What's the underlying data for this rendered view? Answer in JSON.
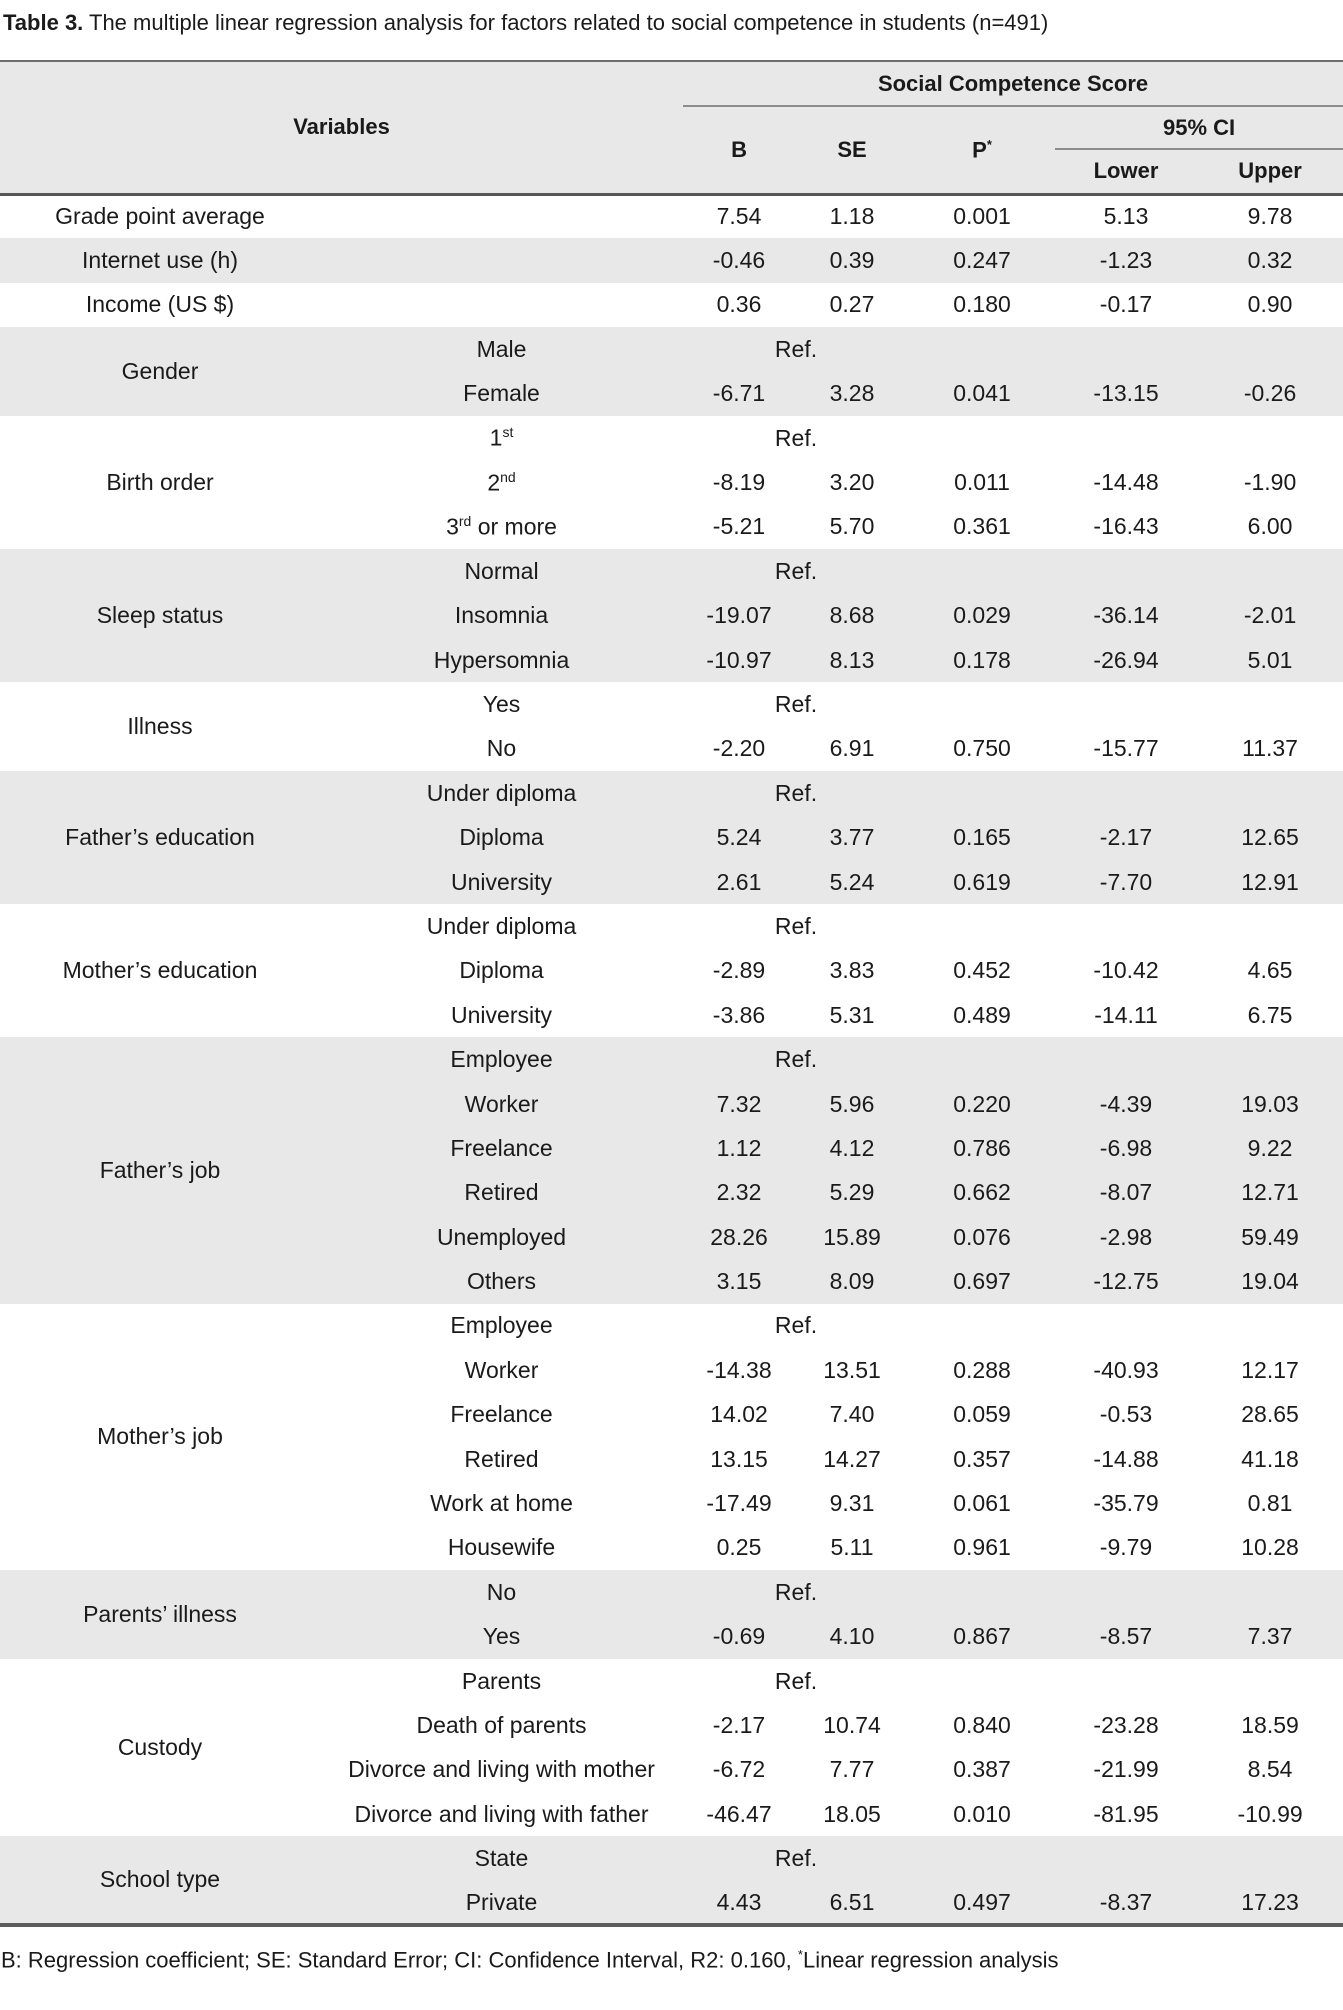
{
  "page": {
    "title_label": "Table 3.",
    "title_text": " The multiple linear regression analysis for factors related to social competence in students (n=491)",
    "footnote_text": "B: Regression coefficient; SE: Standard Error; CI: Confidence Interval, R2: 0.160, ",
    "footnote_sup": "*",
    "footnote_text2": "Linear regression analysis"
  },
  "table": {
    "colors": {
      "shaded_row": "#e8e8e8",
      "border_dark": "#565656",
      "border_light": "#8c8c8c"
    },
    "header": {
      "variables": "Variables",
      "score_group": "Social Competence Score",
      "b": "B",
      "se": "SE",
      "p": "P",
      "p_sup": "*",
      "ci": "95% CI",
      "lower": "Lower",
      "upper": "Upper"
    },
    "ref_label": "Ref.",
    "groups": [
      {
        "variable": "Grade point average",
        "shaded": false,
        "rows": [
          {
            "category": "",
            "b": "7.54",
            "se": "1.18",
            "p": "0.001",
            "lower": "5.13",
            "upper": "9.78"
          }
        ]
      },
      {
        "variable": "Internet use (h)",
        "shaded": true,
        "rows": [
          {
            "category": "",
            "b": "-0.46",
            "se": "0.39",
            "p": "0.247",
            "lower": "-1.23",
            "upper": "0.32"
          }
        ]
      },
      {
        "variable": "Income (US $)",
        "shaded": false,
        "rows": [
          {
            "category": "",
            "b": "0.36",
            "se": "0.27",
            "p": "0.180",
            "lower": "-0.17",
            "upper": "0.90"
          }
        ]
      },
      {
        "variable": "Gender",
        "shaded": true,
        "rows": [
          {
            "category": "Male",
            "ref": true
          },
          {
            "category": "Female",
            "b": "-6.71",
            "se": "3.28",
            "p": "0.041",
            "lower": "-13.15",
            "upper": "-0.26"
          }
        ]
      },
      {
        "variable": "Birth order",
        "shaded": false,
        "rows": [
          {
            "category": {
              "pre": "1",
              "sup": "st",
              "post": ""
            },
            "ref": true
          },
          {
            "category": {
              "pre": "2",
              "sup": "nd",
              "post": ""
            },
            "b": "-8.19",
            "se": "3.20",
            "p": "0.011",
            "lower": "-14.48",
            "upper": "-1.90"
          },
          {
            "category": {
              "pre": "3",
              "sup": "rd",
              "post": " or more"
            },
            "b": "-5.21",
            "se": "5.70",
            "p": "0.361",
            "lower": "-16.43",
            "upper": "6.00"
          }
        ]
      },
      {
        "variable": "Sleep status",
        "shaded": true,
        "rows": [
          {
            "category": "Normal",
            "ref": true
          },
          {
            "category": "Insomnia",
            "b": "-19.07",
            "se": "8.68",
            "p": "0.029",
            "lower": "-36.14",
            "upper": "-2.01"
          },
          {
            "category": "Hypersomnia",
            "b": "-10.97",
            "se": "8.13",
            "p": "0.178",
            "lower": "-26.94",
            "upper": "5.01"
          }
        ]
      },
      {
        "variable": "Illness",
        "shaded": false,
        "rows": [
          {
            "category": "Yes",
            "ref": true
          },
          {
            "category": "No",
            "b": "-2.20",
            "se": "6.91",
            "p": "0.750",
            "lower": "-15.77",
            "upper": "11.37"
          }
        ]
      },
      {
        "variable": "Father’s education",
        "shaded": true,
        "rows": [
          {
            "category": "Under diploma",
            "ref": true
          },
          {
            "category": "Diploma",
            "b": "5.24",
            "se": "3.77",
            "p": "0.165",
            "lower": "-2.17",
            "upper": "12.65"
          },
          {
            "category": "University",
            "b": "2.61",
            "se": "5.24",
            "p": "0.619",
            "lower": "-7.70",
            "upper": "12.91"
          }
        ]
      },
      {
        "variable": "Mother’s education",
        "shaded": false,
        "rows": [
          {
            "category": "Under diploma",
            "ref": true
          },
          {
            "category": "Diploma",
            "b": "-2.89",
            "se": "3.83",
            "p": "0.452",
            "lower": "-10.42",
            "upper": "4.65"
          },
          {
            "category": "University",
            "b": "-3.86",
            "se": "5.31",
            "p": "0.489",
            "lower": "-14.11",
            "upper": "6.75"
          }
        ]
      },
      {
        "variable": "Father’s job",
        "shaded": true,
        "rows": [
          {
            "category": "Employee",
            "ref": true
          },
          {
            "category": "Worker",
            "b": "7.32",
            "se": "5.96",
            "p": "0.220",
            "lower": "-4.39",
            "upper": "19.03"
          },
          {
            "category": "Freelance",
            "b": "1.12",
            "se": "4.12",
            "p": "0.786",
            "lower": "-6.98",
            "upper": "9.22"
          },
          {
            "category": "Retired",
            "b": "2.32",
            "se": "5.29",
            "p": "0.662",
            "lower": "-8.07",
            "upper": "12.71"
          },
          {
            "category": "Unemployed",
            "b": "28.26",
            "se": "15.89",
            "p": "0.076",
            "lower": "-2.98",
            "upper": "59.49"
          },
          {
            "category": "Others",
            "b": "3.15",
            "se": "8.09",
            "p": "0.697",
            "lower": "-12.75",
            "upper": "19.04"
          }
        ]
      },
      {
        "variable": "Mother’s job",
        "shaded": false,
        "rows": [
          {
            "category": "Employee",
            "ref": true
          },
          {
            "category": "Worker",
            "b": "-14.38",
            "se": "13.51",
            "p": "0.288",
            "lower": "-40.93",
            "upper": "12.17"
          },
          {
            "category": "Freelance",
            "b": "14.02",
            "se": "7.40",
            "p": "0.059",
            "lower": "-0.53",
            "upper": "28.65"
          },
          {
            "category": "Retired",
            "b": "13.15",
            "se": "14.27",
            "p": "0.357",
            "lower": "-14.88",
            "upper": "41.18"
          },
          {
            "category": "Work at home",
            "b": "-17.49",
            "se": "9.31",
            "p": "0.061",
            "lower": "-35.79",
            "upper": "0.81"
          },
          {
            "category": "Housewife",
            "b": "0.25",
            "se": "5.11",
            "p": "0.961",
            "lower": "-9.79",
            "upper": "10.28"
          }
        ]
      },
      {
        "variable": "Parents’ illness",
        "shaded": true,
        "rows": [
          {
            "category": "No",
            "ref": true
          },
          {
            "category": "Yes",
            "b": "-0.69",
            "se": "4.10",
            "p": "0.867",
            "lower": "-8.57",
            "upper": "7.37"
          }
        ]
      },
      {
        "variable": "Custody",
        "shaded": false,
        "rows": [
          {
            "category": "Parents",
            "ref": true
          },
          {
            "category": "Death of parents",
            "b": "-2.17",
            "se": "10.74",
            "p": "0.840",
            "lower": "-23.28",
            "upper": "18.59"
          },
          {
            "category": "Divorce and living with mother",
            "b": "-6.72",
            "se": "7.77",
            "p": "0.387",
            "lower": "-21.99",
            "upper": "8.54"
          },
          {
            "category": "Divorce and living with father",
            "b": "-46.47",
            "se": "18.05",
            "p": "0.010",
            "lower": "-81.95",
            "upper": "-10.99"
          }
        ]
      },
      {
        "variable": "School type",
        "shaded": true,
        "rows": [
          {
            "category": "State",
            "ref": true
          },
          {
            "category": "Private",
            "b": "4.43",
            "se": "6.51",
            "p": "0.497",
            "lower": "-8.37",
            "upper": "17.23"
          }
        ]
      }
    ]
  }
}
